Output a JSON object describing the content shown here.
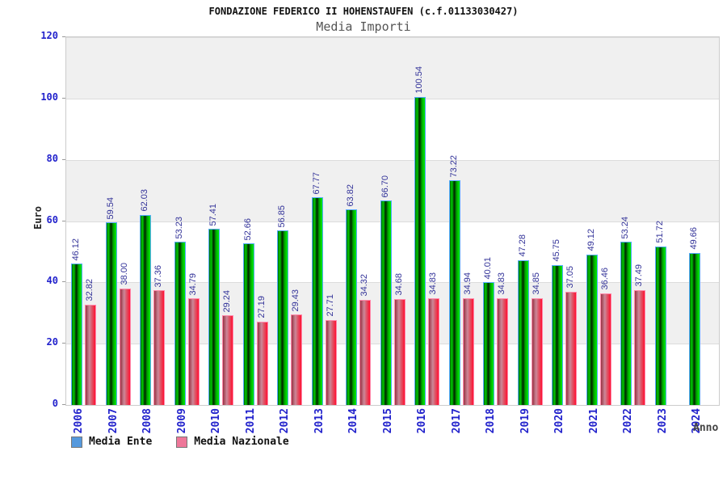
{
  "title": "FONDAZIONE FEDERICO II HOHENSTAUFEN (c.f.01133030427)",
  "subtitle": "Media Importi",
  "chart_data": {
    "type": "bar",
    "title": "FONDAZIONE FEDERICO II HOHENSTAUFEN (c.f.01133030427)",
    "subtitle": "Media Importi",
    "xlabel": "Anno",
    "ylabel": "Euro",
    "ylim": [
      0,
      120
    ],
    "yticks": [
      "0",
      "20",
      "40",
      "60",
      "80",
      "100",
      "120"
    ],
    "grid": "alternating-horizontal-bands",
    "legend_position": "bottom-left",
    "categories": [
      "2006",
      "2007",
      "2008",
      "2009",
      "2010",
      "2011",
      "2012",
      "2013",
      "2014",
      "2015",
      "2016",
      "2017",
      "2018",
      "2019",
      "2020",
      "2021",
      "2022",
      "2023",
      "2024"
    ],
    "series": [
      {
        "name": "Media Ente",
        "values": [
          "46.12",
          "59.54",
          "62.03",
          "53.23",
          "57.41",
          "52.66",
          "56.85",
          "67.77",
          "63.82",
          "66.70",
          "100.54",
          "73.22",
          "40.01",
          "47.28",
          "45.75",
          "49.12",
          "53.24",
          "51.72",
          "49.66"
        ]
      },
      {
        "name": "Media Nazionale",
        "values": [
          "32.82",
          "38.00",
          "37.36",
          "34.79",
          "29.24",
          "27.19",
          "29.43",
          "27.71",
          "34.32",
          "34.68",
          "34.83",
          "34.94",
          "34.83",
          "34.85",
          "37.05",
          "36.46",
          "37.49",
          null,
          null
        ]
      }
    ]
  },
  "legend": {
    "items": [
      {
        "label": "Media Ente"
      },
      {
        "label": "Media Nazionale"
      }
    ]
  },
  "colors": {
    "legend_ente": "#5599dd",
    "legend_nazionale": "#ee7799",
    "tick_label": "#2222cc",
    "value_label": "#333399",
    "band_gray": "#f0f0f0",
    "band_white": "#ffffff",
    "bar_ente_border": "#55aaff",
    "bar_nazionale_border": "#ff88aa"
  }
}
